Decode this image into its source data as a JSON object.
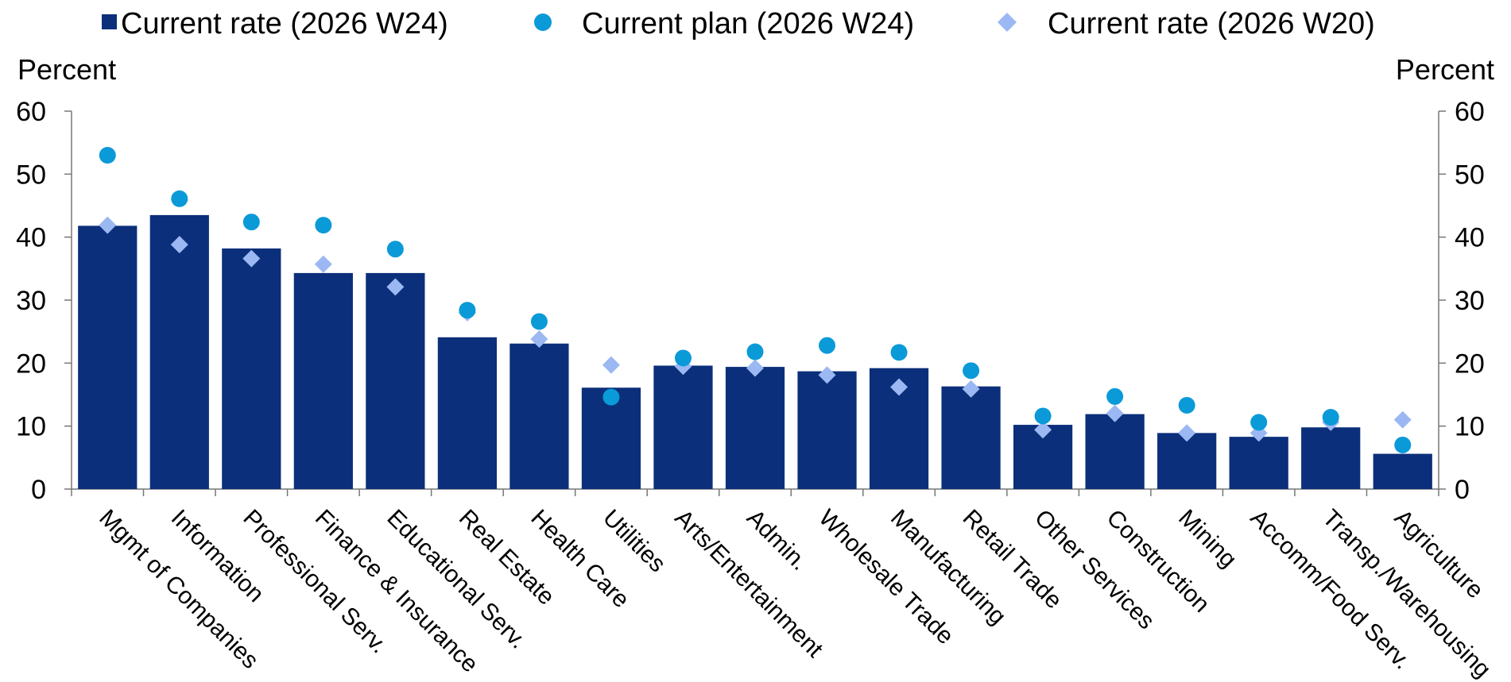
{
  "chart_data": {
    "type": "bar",
    "title": "",
    "ylabel_left": "Percent",
    "ylabel_right": "Percent",
    "ylim": [
      0,
      60
    ],
    "yticks": [
      0,
      10,
      20,
      30,
      40,
      50,
      60
    ],
    "legend_position": "top",
    "categories": [
      "Mgmt of Companies",
      "Information",
      "Professional Serv.",
      "Finance & Insurance",
      "Educational Serv.",
      "Real Estate",
      "Health Care",
      "Utilities",
      "Arts/Entertainment",
      "Admin.",
      "Wholesale Trade",
      "Manufacturing",
      "Retail Trade",
      "Other Services",
      "Construction",
      "Mining",
      "Accomm/Food Serv.",
      "Transp./Warehousing",
      "Agriculture"
    ],
    "series": [
      {
        "name": "Current rate (2026 W24)",
        "kind": "bar",
        "marker": "square",
        "color": "#0b2f7a",
        "values": [
          41.8,
          43.5,
          38.2,
          34.3,
          34.3,
          24.1,
          23.1,
          16.1,
          19.6,
          19.4,
          18.7,
          19.2,
          16.3,
          10.2,
          11.9,
          8.9,
          8.3,
          9.8,
          5.6
        ]
      },
      {
        "name": "Current plan (2026 W24)",
        "kind": "point",
        "marker": "circle",
        "color": "#0a9ad8",
        "values": [
          53.0,
          46.1,
          42.4,
          41.9,
          38.1,
          28.4,
          26.6,
          14.6,
          20.8,
          21.8,
          22.8,
          21.7,
          18.8,
          11.6,
          14.7,
          13.3,
          10.6,
          11.4,
          7.0
        ]
      },
      {
        "name": "Current rate (2026 W20)",
        "kind": "point",
        "marker": "diamond",
        "color": "#9bb8f2",
        "values": [
          41.9,
          38.8,
          36.6,
          35.7,
          32.1,
          28.0,
          23.8,
          19.7,
          19.5,
          19.2,
          18.1,
          16.2,
          15.9,
          9.4,
          12.0,
          8.9,
          8.9,
          10.6,
          11.0
        ]
      }
    ]
  }
}
